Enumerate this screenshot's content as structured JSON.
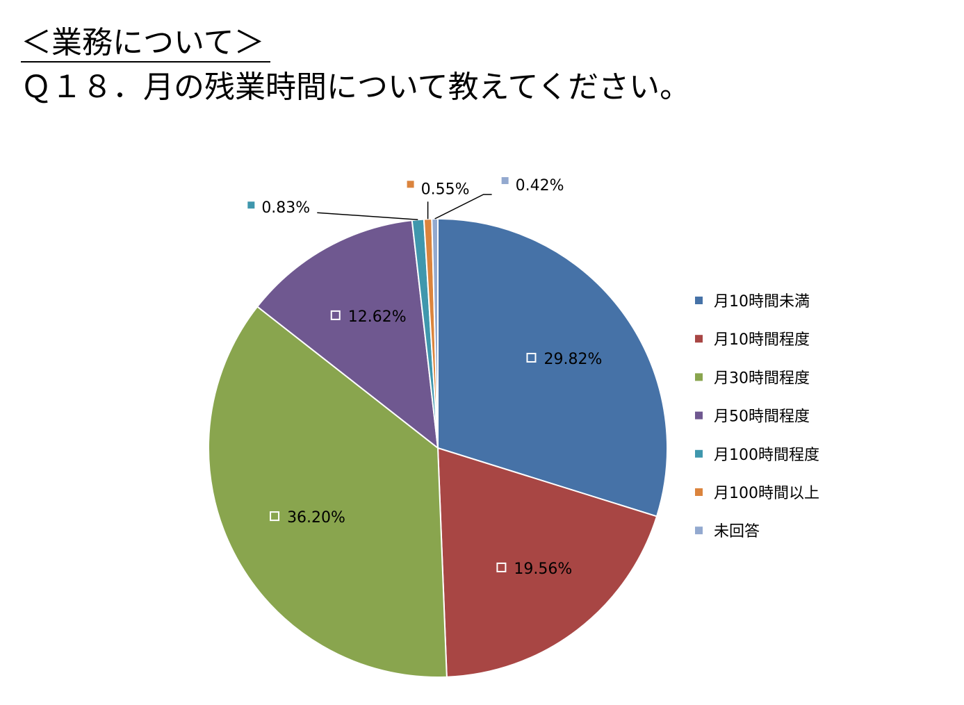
{
  "header": {
    "section": "＜業務について＞",
    "question": "Ｑ１８．月の残業時間について教えてください。"
  },
  "chart_data": {
    "type": "pie",
    "categories": [
      "月10時間未満",
      "月10時間程度",
      "月30時間程度",
      "月50時間程度",
      "月100時間程度",
      "月100時間以上",
      "未回答"
    ],
    "values": [
      29.82,
      19.56,
      36.2,
      12.62,
      0.83,
      0.55,
      0.42
    ],
    "data_labels": [
      "29.82%",
      "19.56%",
      "36.20%",
      "12.62%",
      "0.83%",
      "0.55%",
      "0.42%"
    ],
    "colors": [
      "#4672A7",
      "#A84644",
      "#89A54E",
      "#6F5890",
      "#3F97AD",
      "#DB843D",
      "#93A9CF"
    ],
    "start_angle_deg": 0,
    "direction": "clockwise",
    "legend": "right"
  }
}
